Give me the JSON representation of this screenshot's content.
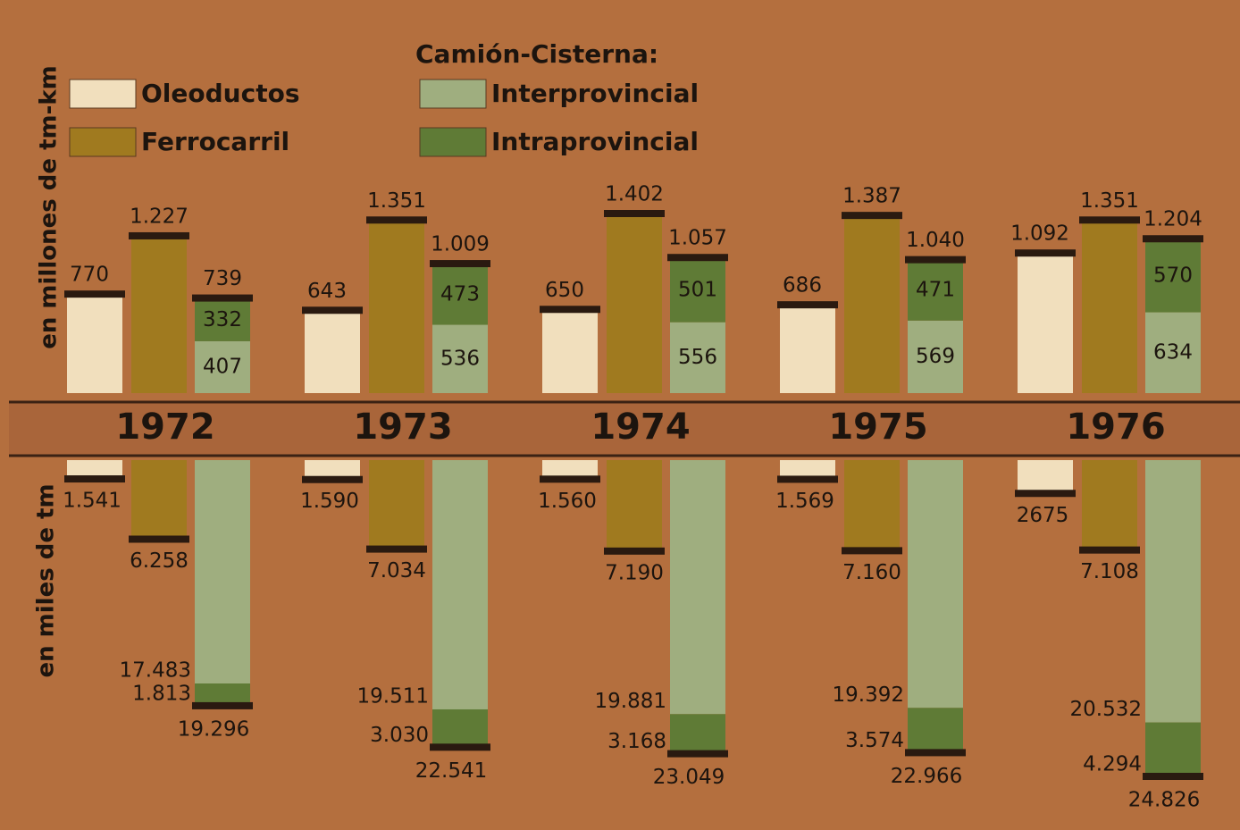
{
  "chart_data": [
    {
      "type": "bar",
      "axis_label": "en millones de tm-km",
      "legend_title": "Camión-Cisterna:",
      "categories": [
        "1972",
        "1973",
        "1974",
        "1975",
        "1976"
      ],
      "series": [
        {
          "name": "Oleoductos",
          "color": "#f1dfbd",
          "values": [
            770,
            643,
            650,
            686,
            1092
          ],
          "value_labels": [
            "770",
            "643",
            "650",
            "686",
            "1.092"
          ]
        },
        {
          "name": "Ferrocarril",
          "color": "#a07a1f",
          "values": [
            1227,
            1351,
            1402,
            1387,
            1351
          ],
          "value_labels": [
            "1.227",
            "1.351",
            "1.402",
            "1.387",
            "1.351"
          ]
        },
        {
          "name": "Interprovincial",
          "color": "#9fae7f",
          "stack": "truck",
          "values": [
            407,
            536,
            556,
            569,
            634
          ]
        },
        {
          "name": "Intraprovincial",
          "color": "#5f7b36",
          "stack": "truck",
          "values": [
            332,
            473,
            501,
            471,
            570
          ]
        }
      ],
      "totals": {
        "values": [
          739,
          1009,
          1057,
          1040,
          1204
        ],
        "value_labels": [
          "739",
          "1.009",
          "1.057",
          "1.040",
          "1.204"
        ]
      }
    },
    {
      "type": "bar",
      "axis_label": "en miles de tm",
      "series": [
        {
          "color": "#f1dfbd",
          "values": [
            1541,
            1590,
            1560,
            1569,
            2675
          ],
          "value_labels": [
            "1.541",
            "1.590",
            "1.560",
            "1.569",
            "2675"
          ]
        },
        {
          "color": "#a07a1f",
          "values": [
            6258,
            7034,
            7190,
            7160,
            7108
          ],
          "value_labels": [
            "6.258",
            "7.034",
            "7.190",
            "7.160",
            "7.108"
          ]
        },
        {
          "color": "#9fae7f",
          "stack": "truck",
          "values": [
            17483,
            19511,
            19881,
            19392,
            20532
          ],
          "value_labels": [
            "17.483",
            "19.511",
            "19.881",
            "19.392",
            "20.532"
          ]
        },
        {
          "color": "#5f7b36",
          "stack": "truck",
          "values": [
            1813,
            3030,
            3168,
            3574,
            4294
          ],
          "value_labels": [
            "1.813",
            "3.030",
            "3.168",
            "3.574",
            "4.294"
          ]
        }
      ],
      "totals": {
        "values": [
          19296,
          22541,
          23049,
          22966,
          24826
        ],
        "value_labels": [
          "19.296",
          "22.541",
          "23.049",
          "22.966",
          "24.826"
        ]
      }
    }
  ]
}
